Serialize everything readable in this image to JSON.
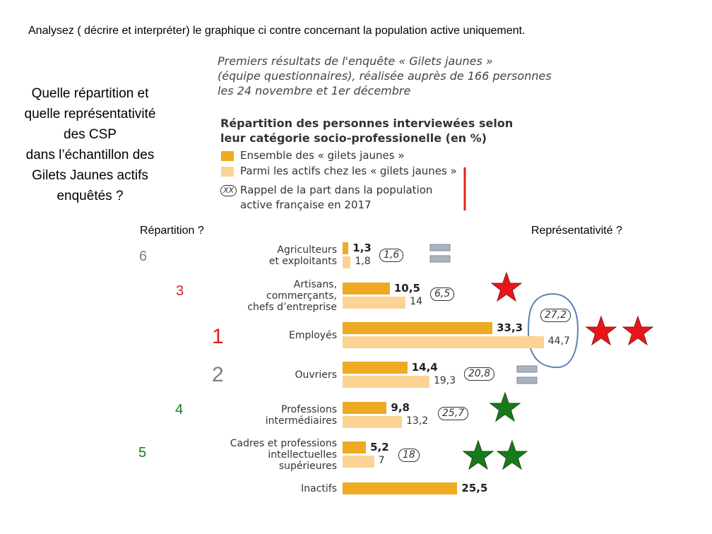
{
  "instruction": "Analysez ( décrire et interpréter) le graphique ci  contre  concernant la population active uniquement.",
  "question": "Quelle répartition et\nquelle représentativité\ndes CSP\ndans l’échantillon des\nGilets Jaunes actifs\nenquêtés ?",
  "left_heading": "Répartition ?",
  "right_heading": "Représentativité ?",
  "ranks": [
    6,
    3,
    1,
    2,
    4,
    5
  ],
  "chart_data": {
    "type": "bar",
    "orientation": "horizontal",
    "title": "Premiers résultats de l'enquête « Gilets jaunes »\n(équipe questionnaires), réalisée auprès de 166 personnes\nles 24 novembre et 1er décembre",
    "subtitle": "Répartition des personnes interviewées selon\nleur catégorie socio-professionelle (en %)",
    "categories": [
      "Agriculteurs\net exploitants",
      "Artisans,\ncommerçants,\nchefs d’entreprise",
      "Employés",
      "Ouvriers",
      "Professions\nintermédiaires",
      "Cadres et professions\nintellectuelles\nsupérieures",
      "Inactifs"
    ],
    "series": [
      {
        "name": "Ensemble des « gilets jaunes »",
        "color": "#eeaa22",
        "values": [
          1.3,
          10.5,
          33.3,
          14.4,
          9.8,
          5.2,
          25.5
        ],
        "value_labels": [
          "1,3",
          "10,5",
          "33,3",
          "14,4",
          "9,8",
          "5,2",
          "25,5"
        ]
      },
      {
        "name": "Parmi les actifs chez les « gilets jaunes »",
        "color": "#fbd394",
        "values": [
          1.8,
          14,
          44.7,
          19.3,
          13.2,
          7,
          null
        ],
        "value_labels": [
          "1,8",
          "14",
          "44,7",
          "19,3",
          "13,2",
          "7",
          null
        ]
      }
    ],
    "reference": {
      "name": "Rappel de la part dans la population\nactive française en 2017",
      "symbol": "XX",
      "values": [
        1.6,
        6.5,
        27.2,
        20.8,
        25.7,
        18,
        null
      ],
      "value_labels": [
        "1,6",
        "6,5",
        "27,2",
        "20,8",
        "25,7",
        "18",
        null
      ]
    }
  }
}
